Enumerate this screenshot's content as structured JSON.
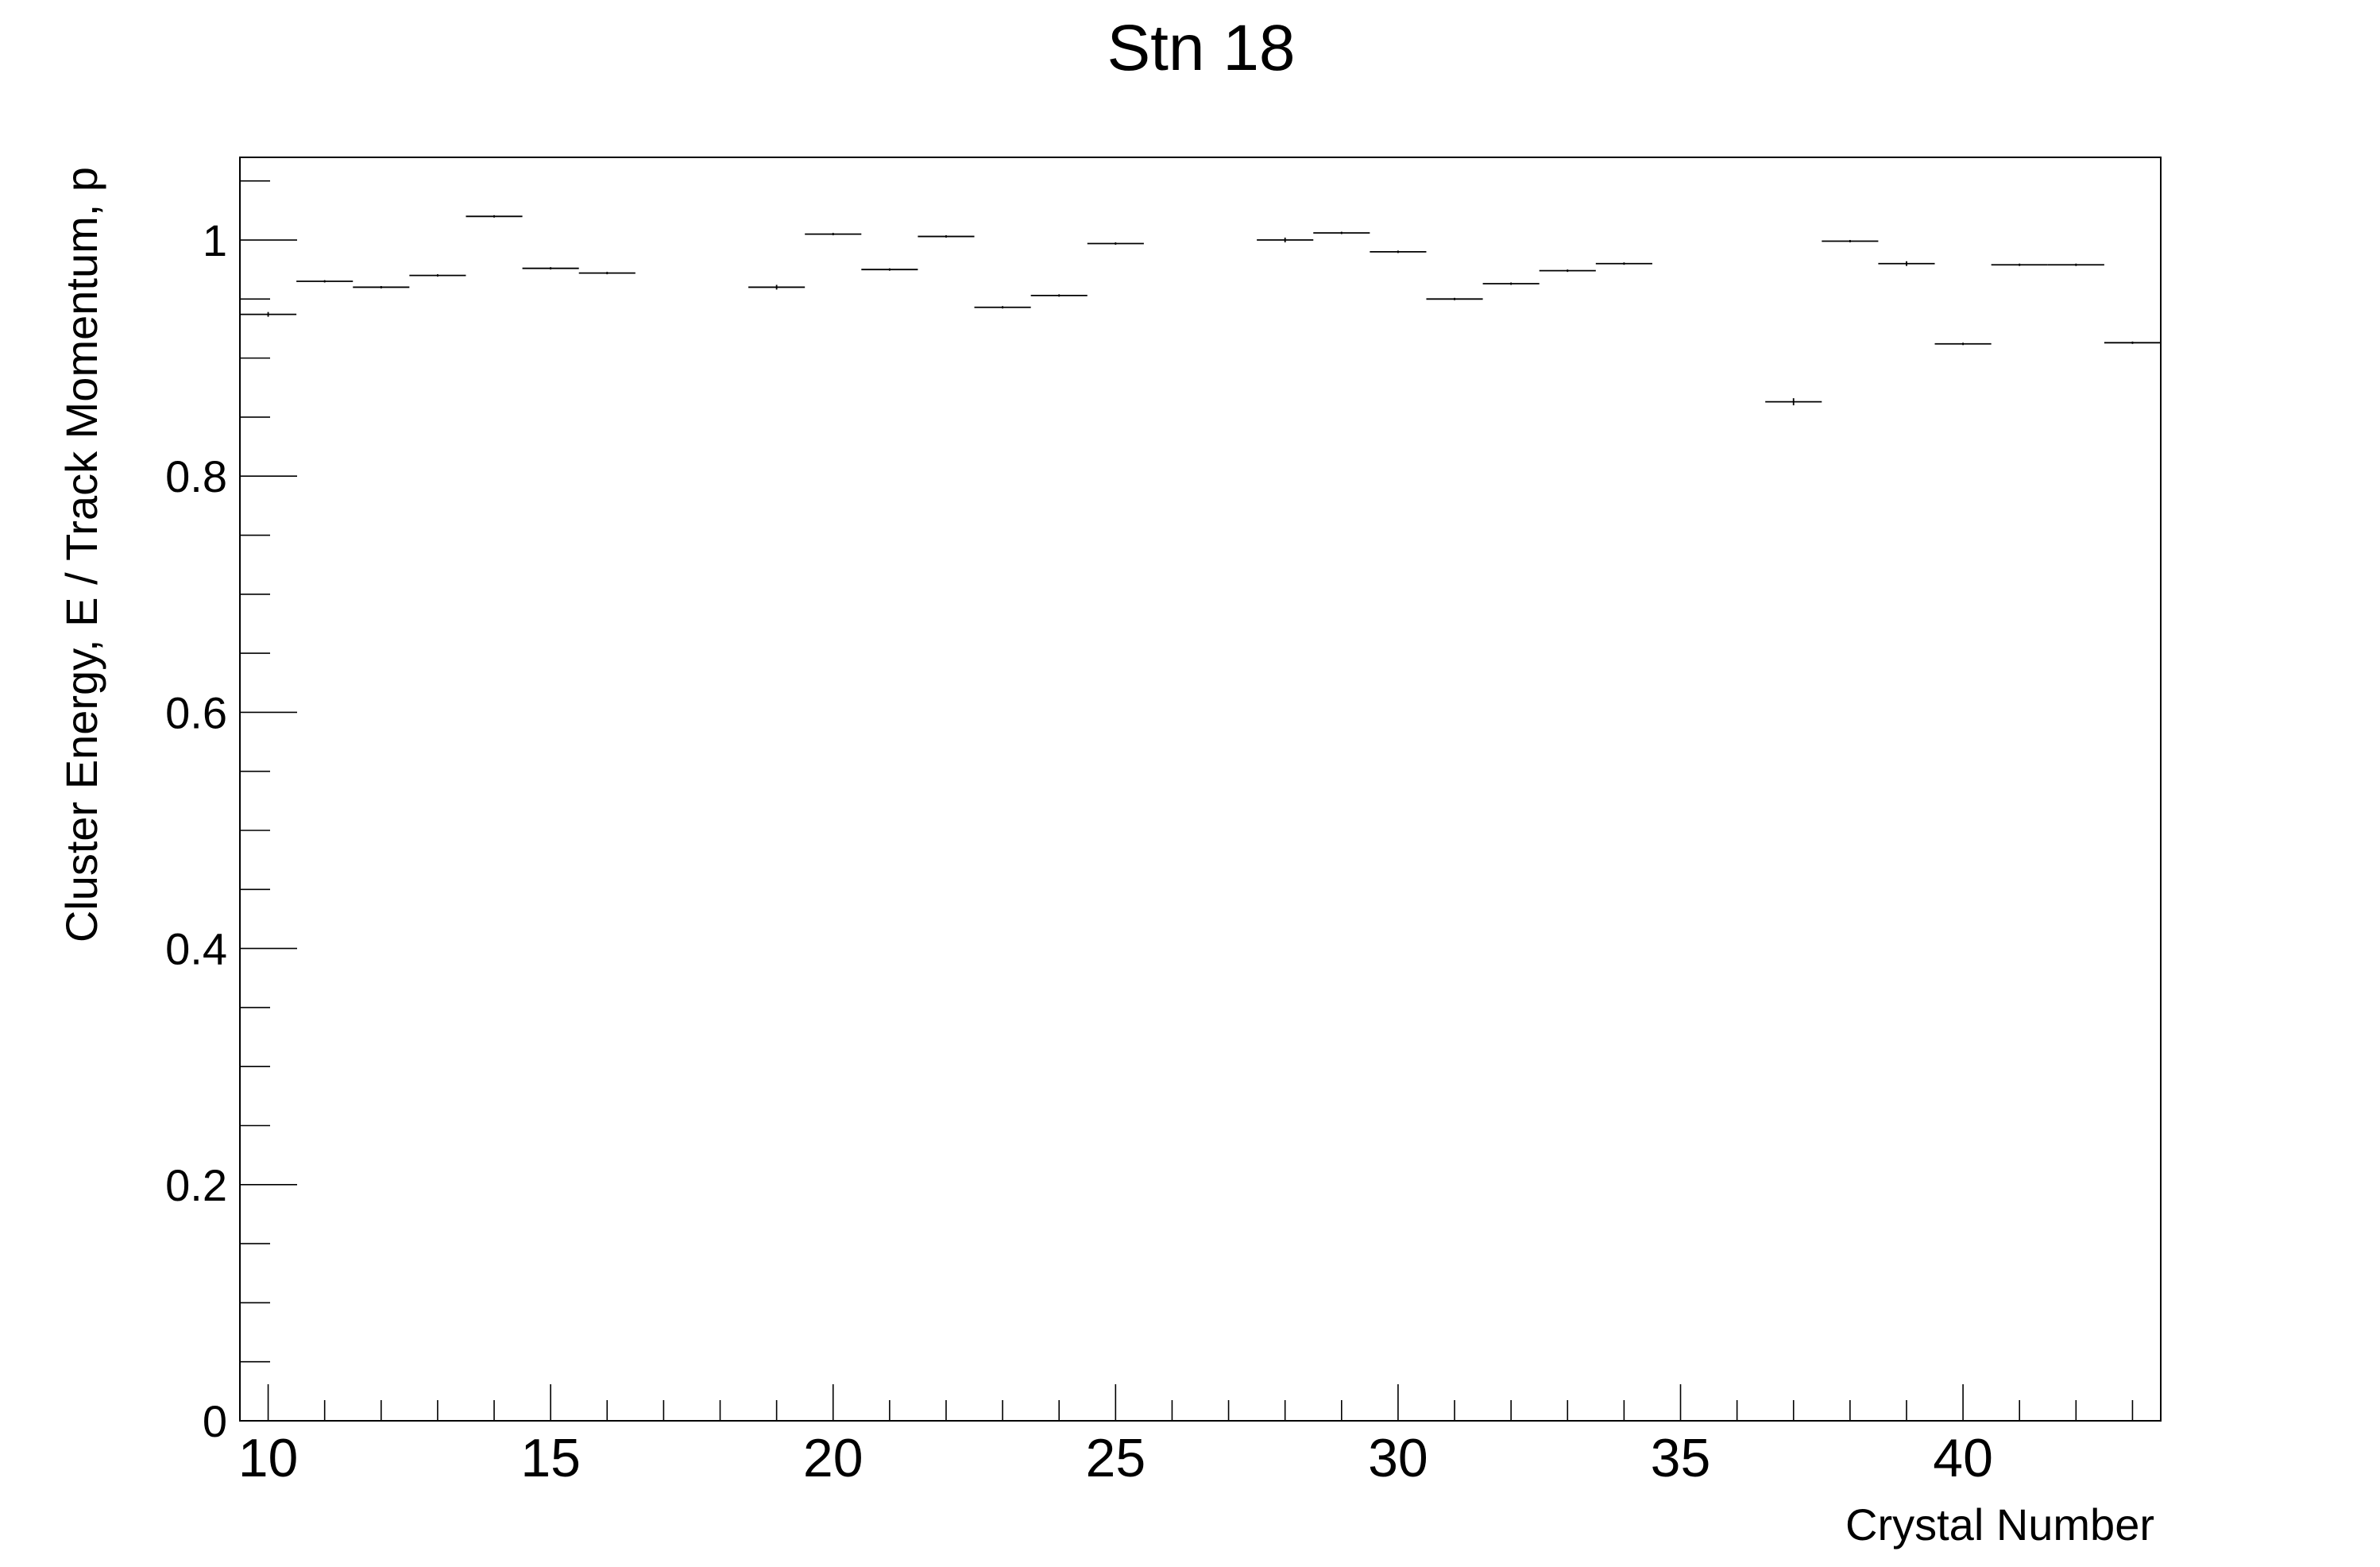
{
  "chart_data": {
    "type": "histogram-errorbar",
    "title": "Stn 18",
    "xlabel": "Crystal Number",
    "ylabel": "Cluster Energy, E / Track Momentum, p",
    "xlim": [
      9.5,
      43.5
    ],
    "ylim": [
      0,
      1.07
    ],
    "x_ticks": [
      10,
      15,
      20,
      25,
      30,
      35,
      40
    ],
    "y_ticks": [
      0,
      0.2,
      0.4,
      0.6,
      0.8,
      1
    ],
    "y_tick_labels": [
      "0",
      "0.2",
      "0.4",
      "0.6",
      "0.8",
      "1"
    ],
    "grid": false,
    "legend": "none",
    "bin_width": 1,
    "points": [
      {
        "x": 10,
        "y": 0.937,
        "err": 0.002
      },
      {
        "x": 11,
        "y": 0.965,
        "err": 0.001
      },
      {
        "x": 12,
        "y": 0.96,
        "err": 0.001
      },
      {
        "x": 13,
        "y": 0.97,
        "err": 0.001
      },
      {
        "x": 14,
        "y": 1.02,
        "err": 0.001
      },
      {
        "x": 15,
        "y": 0.976,
        "err": 0.001
      },
      {
        "x": 16,
        "y": 0.972,
        "err": 0.001
      },
      {
        "x": 19,
        "y": 0.96,
        "err": 0.002
      },
      {
        "x": 20,
        "y": 1.005,
        "err": 0.001
      },
      {
        "x": 21,
        "y": 0.975,
        "err": 0.001
      },
      {
        "x": 22,
        "y": 1.003,
        "err": 0.001
      },
      {
        "x": 23,
        "y": 0.943,
        "err": 0.001
      },
      {
        "x": 24,
        "y": 0.953,
        "err": 0.001
      },
      {
        "x": 25,
        "y": 0.997,
        "err": 0.001
      },
      {
        "x": 28,
        "y": 1.0,
        "err": 0.002
      },
      {
        "x": 29,
        "y": 1.006,
        "err": 0.001
      },
      {
        "x": 30,
        "y": 0.99,
        "err": 0.001
      },
      {
        "x": 31,
        "y": 0.95,
        "err": 0.001
      },
      {
        "x": 32,
        "y": 0.963,
        "err": 0.001
      },
      {
        "x": 33,
        "y": 0.974,
        "err": 0.001
      },
      {
        "x": 34,
        "y": 0.98,
        "err": 0.001
      },
      {
        "x": 37,
        "y": 0.863,
        "err": 0.003
      },
      {
        "x": 38,
        "y": 0.999,
        "err": 0.001
      },
      {
        "x": 39,
        "y": 0.98,
        "err": 0.002
      },
      {
        "x": 40,
        "y": 0.912,
        "err": 0.001
      },
      {
        "x": 41,
        "y": 0.979,
        "err": 0.001
      },
      {
        "x": 42,
        "y": 0.979,
        "err": 0.001
      },
      {
        "x": 43,
        "y": 0.913,
        "err": 0.001
      }
    ]
  }
}
